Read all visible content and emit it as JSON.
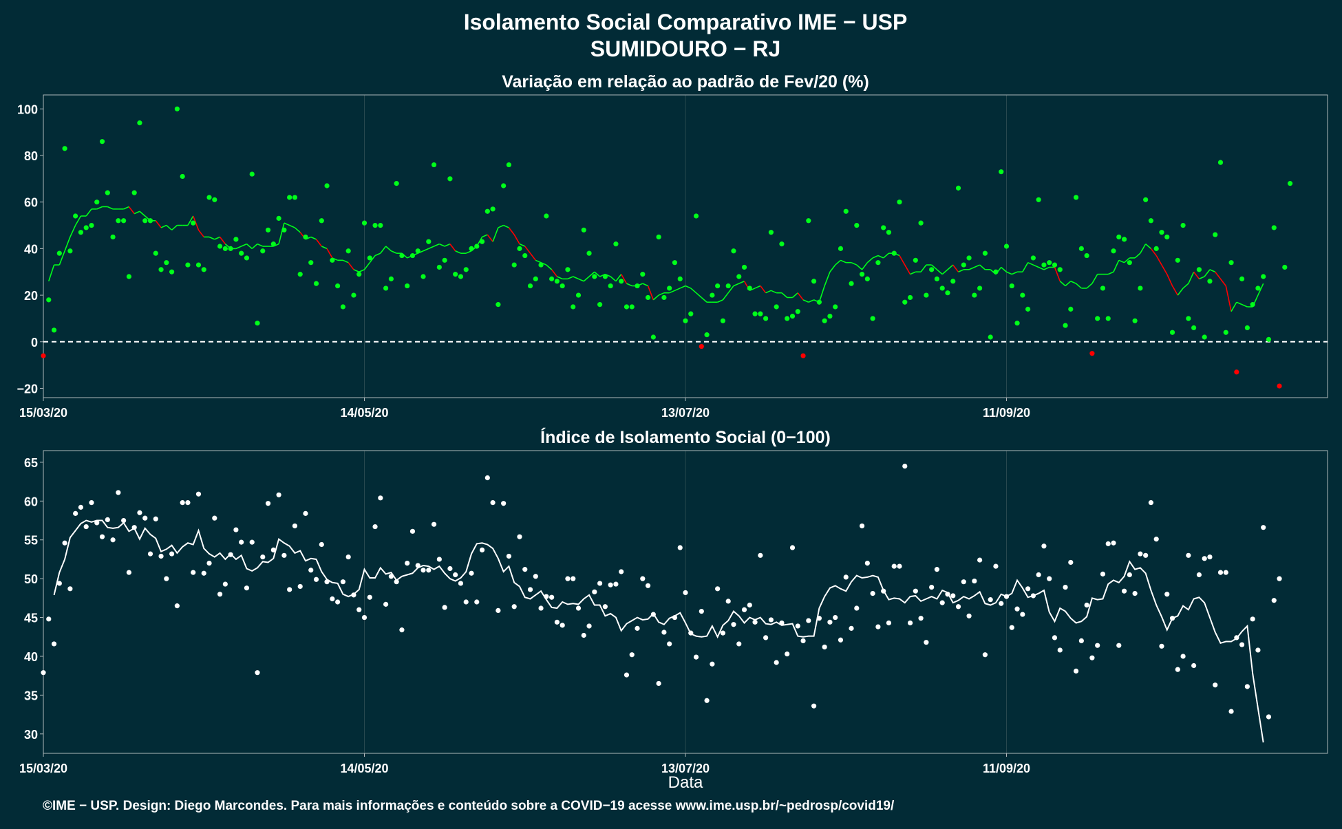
{
  "header": {
    "title": "Isolamento Social Comparativo IME − USP",
    "subtitle": "SUMIDOURO − RJ"
  },
  "x_axis_label": "Data",
  "footer": "©IME − USP. Design: Diego Marcondes. Para mais informações e conteúdo sobre a COVID−19 acesse www.ime.usp.br/~pedrosp/covid19/",
  "colors": {
    "background": "#022b36",
    "top_positive": "#00ff1a",
    "top_negative": "#ff0000",
    "bottom": "#ffffff",
    "grid": "#28484f",
    "zero_line": "#ffffff"
  },
  "chart_data": [
    {
      "type": "scatter",
      "title": "Variação em relação ao padrão de Fev/20 (%)",
      "x_start_date": "15/03/20",
      "x_end_date": "10/11/20",
      "x_ticks": [
        "15/03/20",
        "14/05/20",
        "13/07/20",
        "11/09/20"
      ],
      "ylim": [
        -24,
        106
      ],
      "y_ticks": [
        -20,
        0,
        20,
        40,
        60,
        80,
        100
      ],
      "reference_line": 0,
      "grid": true,
      "values": [
        -6,
        18,
        5,
        38,
        83,
        39,
        54,
        47,
        49,
        50,
        60,
        86,
        64,
        45,
        52,
        52,
        28,
        64,
        94,
        52,
        52,
        38,
        31,
        34,
        30,
        100,
        71,
        33,
        51,
        33,
        31,
        62,
        61,
        41,
        40,
        40,
        44,
        38,
        36,
        72,
        8,
        39,
        48,
        42,
        53,
        48,
        62,
        62,
        29,
        45,
        34,
        25,
        52,
        67,
        35,
        24,
        15,
        39,
        20,
        29,
        51,
        36,
        50,
        50,
        23,
        27,
        68,
        37,
        24,
        37,
        39,
        28,
        43,
        76,
        32,
        35,
        70,
        29,
        28,
        31,
        40,
        41,
        43,
        56,
        57,
        16,
        67,
        76,
        33,
        40,
        37,
        24,
        27,
        33,
        54,
        27,
        26,
        24,
        31,
        15,
        20,
        48,
        38,
        28,
        16,
        28,
        24,
        42,
        26,
        15,
        15,
        24,
        29,
        19,
        2,
        45,
        19,
        23,
        34,
        27,
        9,
        12,
        54,
        -2,
        3,
        20,
        24,
        9,
        24,
        39,
        28,
        32,
        23,
        12,
        12,
        10,
        47,
        15,
        42,
        10,
        11,
        13,
        -6,
        52,
        26,
        17,
        9,
        11,
        15,
        40,
        56,
        25,
        50,
        29,
        27,
        10,
        34,
        49,
        47,
        38,
        60,
        17,
        19,
        35,
        51,
        20,
        31,
        27,
        23,
        21,
        26,
        66,
        33,
        36,
        20,
        23,
        38,
        2,
        30,
        73,
        41,
        24,
        8,
        20,
        14,
        36,
        61,
        33,
        34,
        33,
        31,
        7,
        14,
        62,
        40,
        37,
        -5,
        10,
        23,
        10,
        39,
        45,
        44,
        34,
        9,
        23,
        61,
        52,
        40,
        47,
        45,
        4,
        35,
        50,
        10,
        6,
        31,
        2,
        26,
        46,
        77,
        4,
        34,
        -13,
        27,
        6,
        16,
        23,
        28,
        1,
        49,
        -19,
        32,
        68
      ],
      "moving_average": [
        26,
        33,
        33,
        39,
        45,
        50,
        54,
        54,
        57,
        57,
        58,
        58,
        57,
        57,
        57,
        58,
        55,
        56,
        54,
        52,
        52,
        49,
        50,
        48,
        50,
        50,
        50,
        54,
        48,
        45,
        45,
        44,
        45,
        42,
        40,
        40,
        41,
        42,
        40,
        42,
        41,
        41,
        41,
        42,
        51,
        50,
        49,
        47,
        44,
        45,
        44,
        41,
        40,
        36,
        35,
        35,
        34,
        31,
        30,
        31,
        34,
        37,
        38,
        41,
        39,
        38,
        38,
        36,
        37,
        38,
        39,
        40,
        41,
        42,
        41,
        42,
        39,
        38,
        38,
        39,
        41,
        45,
        46,
        43,
        49,
        50,
        49,
        46,
        42,
        41,
        38,
        35,
        34,
        33,
        31,
        28,
        27,
        27,
        28,
        27,
        26,
        28,
        30,
        28,
        29,
        28,
        26,
        29,
        25,
        24,
        24,
        25,
        24,
        18,
        20,
        21,
        21,
        22,
        23,
        24,
        23,
        21,
        19,
        17,
        17,
        17,
        18,
        21,
        24,
        25,
        26,
        22,
        23,
        24,
        21,
        22,
        21,
        21,
        19,
        19,
        21,
        18,
        17,
        18,
        17,
        24,
        30,
        33,
        35,
        34,
        34,
        33,
        31,
        34,
        36,
        37,
        36,
        38,
        38,
        37,
        33,
        29,
        30,
        30,
        33,
        33,
        31,
        29,
        31,
        33,
        30,
        31,
        31,
        32,
        33,
        31,
        31,
        29,
        32,
        30,
        29,
        30,
        30,
        34,
        33,
        32,
        31,
        32,
        32,
        26,
        24,
        26,
        25,
        23,
        23,
        25,
        29,
        29,
        29,
        30,
        35,
        34,
        36,
        36,
        38,
        42,
        40,
        37,
        33,
        29,
        24,
        20,
        23,
        25,
        30,
        27,
        28,
        31,
        30,
        27,
        24,
        13,
        17,
        16,
        15,
        15,
        20,
        25
      ],
      "moving_average_start_day": 1
    },
    {
      "type": "scatter",
      "title": "Índice de Isolamento Social (0−100)",
      "x_start_date": "15/03/20",
      "x_end_date": "10/11/20",
      "x_ticks": [
        "15/03/20",
        "14/05/20",
        "13/07/20",
        "11/09/20"
      ],
      "ylim": [
        27.5,
        66.5
      ],
      "y_ticks": [
        30,
        35,
        40,
        45,
        50,
        55,
        60,
        65
      ],
      "grid": true,
      "values": [
        37.9,
        44.8,
        41.6,
        49.4,
        54.6,
        48.7,
        58.4,
        59.2,
        56.7,
        59.8,
        57.2,
        55.4,
        57.6,
        55.0,
        61.1,
        57.5,
        50.8,
        56.6,
        58.5,
        57.8,
        53.2,
        57.7,
        52.9,
        50.0,
        53.2,
        46.5,
        59.8,
        59.8,
        50.8,
        60.9,
        50.7,
        52.0,
        57.8,
        48.0,
        49.3,
        53.1,
        56.3,
        54.7,
        48.8,
        54.7,
        37.9,
        52.8,
        59.7,
        53.7,
        60.8,
        53.0,
        48.6,
        56.8,
        49.0,
        58.4,
        51.1,
        49.9,
        54.4,
        49.6,
        47.4,
        47.0,
        49.6,
        52.8,
        47.9,
        46.0,
        45.0,
        47.6,
        56.7,
        60.4,
        46.7,
        50.3,
        49.6,
        43.4,
        52.0,
        56.1,
        51.7,
        51.1,
        51.1,
        57.0,
        52.5,
        46.3,
        51.3,
        50.5,
        49.4,
        47.0,
        50.7,
        47.0,
        53.7,
        63.0,
        59.8,
        45.9,
        59.7,
        52.9,
        46.4,
        55.4,
        51.2,
        48.6,
        50.3,
        46.2,
        47.7,
        47.6,
        44.4,
        44.0,
        50.0,
        50.0,
        46.2,
        42.7,
        43.9,
        48.3,
        49.4,
        46.4,
        49.2,
        49.3,
        50.9,
        37.6,
        40.2,
        43.6,
        50.0,
        49.1,
        45.4,
        36.5,
        43.1,
        41.6,
        45.0,
        54.0,
        48.2,
        43.0,
        39.9,
        45.8,
        34.3,
        39.0,
        48.7,
        43.0,
        47.1,
        44.1,
        41.6,
        46.0,
        46.6,
        44.4,
        53.0,
        42.4,
        44.7,
        39.2,
        44.3,
        40.3,
        54.0,
        43.9,
        42.0,
        44.6,
        33.6,
        44.9,
        41.2,
        44.4,
        45.0,
        42.1,
        50.2,
        43.6,
        46.2,
        56.8,
        52.0,
        48.1,
        43.8,
        48.4,
        44.3,
        51.6,
        51.6,
        64.5,
        44.3,
        48.4,
        44.9,
        41.8,
        48.9,
        51.2,
        46.9,
        48.0,
        47.8,
        46.4,
        49.6,
        45.2,
        49.7,
        52.4,
        40.2,
        47.3,
        51.6,
        46.8,
        47.7,
        43.7,
        46.1,
        45.4,
        48.7,
        47.8,
        50.5,
        54.2,
        50.0,
        42.4,
        40.8,
        48.9,
        52.1,
        38.1,
        42.0,
        46.6,
        39.8,
        41.4,
        50.6,
        54.5,
        54.6,
        41.4,
        48.4,
        50.5,
        48.1,
        53.2,
        53.0,
        59.8,
        55.1,
        41.3,
        48.0,
        44.9,
        38.3,
        40.0,
        53.0,
        38.8,
        50.5,
        52.6,
        52.8,
        36.3,
        50.8,
        50.8,
        32.9,
        42.4,
        41.5,
        36.1,
        44.8,
        40.8,
        56.6,
        32.2,
        47.2,
        50.0
      ],
      "moving_average": [
        47.9,
        50.8,
        52.5,
        55.3,
        56.2,
        57.1,
        57.5,
        57.3,
        57.5,
        57.5,
        56.6,
        56.5,
        56.6,
        57.2,
        56.1,
        56.5,
        55.1,
        56.5,
        55.7,
        55.2,
        53.5,
        53.8,
        54.3,
        53.3,
        54.1,
        54.6,
        54.4,
        56.2,
        53.9,
        53.2,
        52.8,
        53.3,
        52.5,
        53.2,
        52.5,
        53.0,
        51.3,
        51.0,
        51.4,
        52.2,
        52.1,
        52.6,
        55.1,
        54.6,
        54.2,
        53.3,
        53.6,
        52.3,
        52.6,
        52.5,
        50.9,
        49.9,
        49.5,
        49.4,
        48.0,
        47.7,
        48.0,
        48.6,
        51.2,
        50.1,
        50.1,
        51.4,
        50.6,
        50.8,
        49.8,
        50.3,
        50.5,
        50.7,
        51.4,
        51.7,
        51.6,
        51.2,
        51.6,
        50.7,
        50.0,
        49.7,
        50.1,
        50.9,
        53.2,
        54.5,
        54.6,
        54.4,
        53.9,
        52.6,
        50.9,
        51.6,
        49.5,
        49.0,
        47.6,
        47.4,
        47.9,
        48.4,
        47.3,
        46.3,
        46.2,
        47.0,
        46.7,
        46.8,
        46.7,
        47.4,
        47.9,
        46.6,
        46.6,
        45.2,
        45.5,
        45.0,
        43.3,
        44.2,
        44.6,
        45.0,
        44.7,
        44.8,
        45.5,
        44.4,
        44.1,
        44.9,
        45.2,
        45.6,
        44.3,
        42.9,
        42.6,
        42.5,
        42.6,
        43.9,
        42.5,
        44.0,
        44.6,
        45.8,
        45.2,
        44.3,
        45.0,
        44.7,
        45.0,
        44.2,
        44.1,
        44.4,
        44.0,
        44.1,
        44.2,
        42.6,
        42.5,
        42.6,
        42.6,
        46.2,
        47.7,
        48.8,
        49.1,
        48.7,
        48.4,
        49.6,
        50.4,
        50.1,
        50.2,
        50.4,
        50.2,
        48.5,
        47.3,
        47.5,
        47.4,
        46.9,
        47.7,
        47.8,
        47.1,
        47.4,
        47.7,
        47.4,
        48.5,
        48.2,
        46.9,
        47.2,
        47.7,
        47.4,
        47.8,
        48.3,
        46.8,
        46.6,
        46.9,
        48.0,
        47.7,
        48.1,
        49.8,
        48.8,
        47.6,
        47.8,
        48.1,
        48.5,
        45.7,
        44.5,
        46.2,
        45.8,
        44.9,
        44.3,
        44.5,
        45.1,
        47.5,
        47.3,
        47.4,
        49.3,
        49.8,
        49.5,
        50.3,
        52.2,
        51.2,
        51.4,
        50.7,
        48.5,
        46.6,
        45.1,
        43.4,
        44.9,
        45.2,
        46.5,
        46.0,
        47.4,
        47.6,
        46.9,
        45.0,
        43.1,
        41.7,
        41.9,
        41.9,
        42.3,
        43.2,
        43.9,
        37.8,
        33.3,
        28.9
      ],
      "moving_average_start_day": 2
    }
  ]
}
